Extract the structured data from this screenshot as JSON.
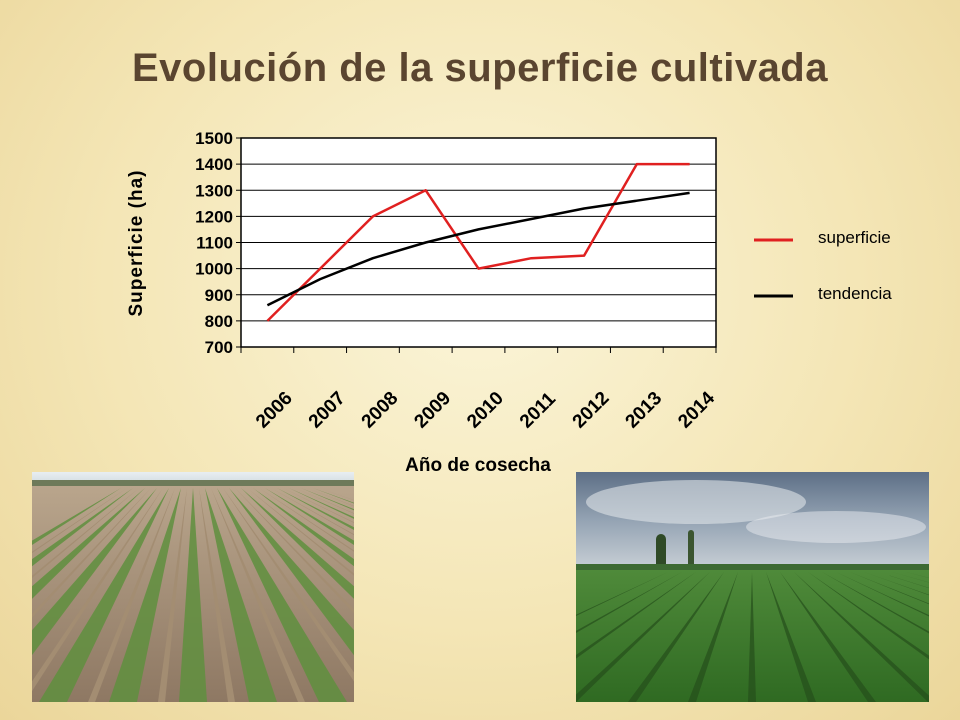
{
  "slide": {
    "title": "Evolución de la superficie cultivada"
  },
  "chart_data": {
    "type": "line",
    "title": "",
    "xlabel": "Año de cosecha",
    "ylabel": "Superficie (ha)",
    "categories": [
      "2006",
      "2007",
      "2008",
      "2009",
      "2010",
      "2011",
      "2012",
      "2013",
      "2014"
    ],
    "yticks": [
      700,
      800,
      900,
      1000,
      1100,
      1200,
      1300,
      1400,
      1500
    ],
    "ylim": [
      700,
      1500
    ],
    "grid": "horizontal",
    "legend_position": "right",
    "series": [
      {
        "name": "superficie",
        "color": "#e02020",
        "values": [
          800,
          1000,
          1200,
          1300,
          1000,
          1040,
          1050,
          1400,
          1400
        ]
      },
      {
        "name": "tendencia",
        "color": "#000000",
        "values": [
          860,
          960,
          1040,
          1100,
          1150,
          1190,
          1230,
          1260,
          1290
        ]
      }
    ]
  },
  "photos": {
    "left": "plowed-field-with-seedling-rows",
    "right": "mature-crop-field-under-cloudy-sky"
  }
}
